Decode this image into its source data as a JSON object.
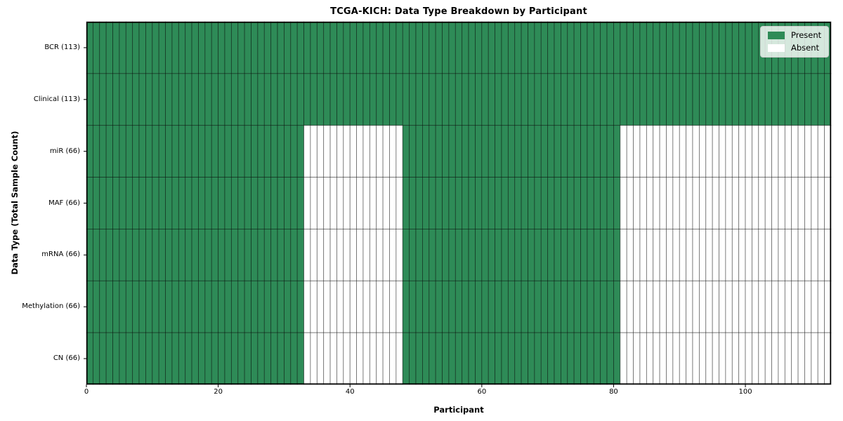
{
  "chart_data": {
    "type": "heatmap",
    "title": "TCGA-KICH: Data Type Breakdown by Participant",
    "xlabel": "Participant",
    "ylabel": "Data Type (Total Sample Count)",
    "n_participants": 113,
    "xlim": [
      0,
      113
    ],
    "x_ticks": [
      0,
      20,
      40,
      60,
      80,
      100
    ],
    "grid": "cell-edges",
    "legend_position": "upper-right",
    "legend_items": [
      {
        "label": "Present",
        "color": "#2e8b57"
      },
      {
        "label": "Absent",
        "color": "#ffffff"
      }
    ],
    "colors": {
      "present": "#2e8b57",
      "absent": "#ffffff",
      "cell_edge": "#000000",
      "axis_border": "#000000"
    },
    "rows": [
      {
        "label": "BCR (113)",
        "total_samples": 113,
        "present_segments": [
          [
            0,
            113
          ]
        ]
      },
      {
        "label": "Clinical (113)",
        "total_samples": 113,
        "present_segments": [
          [
            0,
            113
          ]
        ]
      },
      {
        "label": "miR (66)",
        "total_samples": 66,
        "present_segments": [
          [
            0,
            33
          ],
          [
            48,
            81
          ]
        ]
      },
      {
        "label": "MAF (66)",
        "total_samples": 66,
        "present_segments": [
          [
            0,
            33
          ],
          [
            48,
            81
          ]
        ]
      },
      {
        "label": "mRNA (66)",
        "total_samples": 66,
        "present_segments": [
          [
            0,
            33
          ],
          [
            48,
            81
          ]
        ]
      },
      {
        "label": "Methylation (66)",
        "total_samples": 66,
        "present_segments": [
          [
            0,
            33
          ],
          [
            48,
            81
          ]
        ]
      },
      {
        "label": "CN (66)",
        "total_samples": 66,
        "present_segments": [
          [
            0,
            33
          ],
          [
            48,
            81
          ]
        ]
      }
    ]
  }
}
